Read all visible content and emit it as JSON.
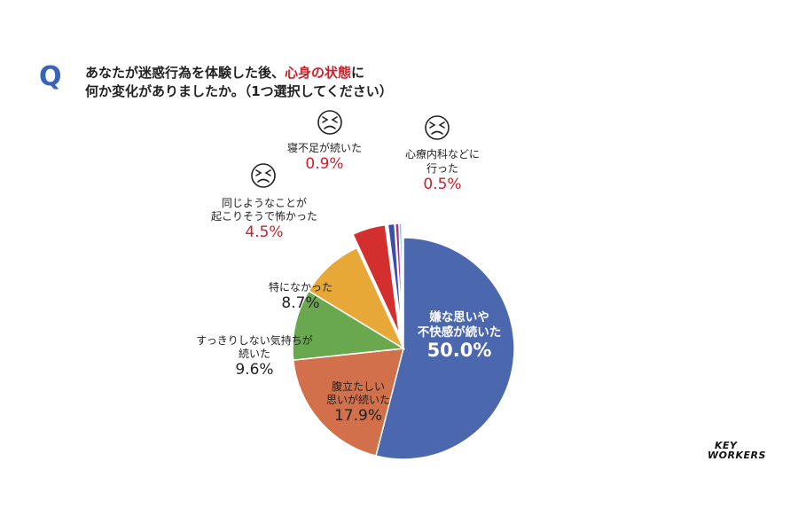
{
  "question": {
    "mark": "Q",
    "line1_pre": "あなたが迷惑行為を体験した後、",
    "line1_highlight": "心身の状態",
    "line1_post": "に",
    "line2": "何か変化がありましたか。（1つ選択してください）"
  },
  "brand": {
    "line1": "KEY",
    "line2": "WORKERS"
  },
  "colors": {
    "highlight": "#d0202a",
    "q_mark": "#3a63b8"
  },
  "chart_data": {
    "type": "pie",
    "start": "12 o'clock, clockwise",
    "exploded_slices": [
      "同じようなことが起こりそうで怖かった",
      "寝不足が続いた",
      "心療内科などに行った",
      "other_small"
    ],
    "slices": [
      {
        "label_lines": [
          "嫌な思いや",
          "不快感が続いた"
        ],
        "value": 50.0,
        "value_label": "50.0%",
        "color": "#4b67ad",
        "label_inside": true
      },
      {
        "label_lines": [
          "腹立たしい",
          "思いが続いた"
        ],
        "value": 17.9,
        "value_label": "17.9%",
        "color": "#d1704a",
        "label_inside": true
      },
      {
        "label_lines": [
          "すっきりしない気持ちが",
          "続いた"
        ],
        "value": 9.6,
        "value_label": "9.6%",
        "color": "#6aa84f",
        "label_inside": false
      },
      {
        "label_lines": [
          "特になかった"
        ],
        "value": 8.7,
        "value_label": "8.7%",
        "color": "#e8a838",
        "label_inside": false
      },
      {
        "label_lines": [
          "同じようなことが",
          "起こりそうで怖かった"
        ],
        "value": 4.5,
        "value_label": "4.5%",
        "color": "#d32f2f",
        "label_inside": false,
        "value_red": true,
        "face": true
      },
      {
        "label_lines": [
          "寝不足が続いた"
        ],
        "value": 0.9,
        "value_label": "0.9%",
        "color": "#3a4eaa",
        "label_inside": false,
        "value_red": true,
        "face": true
      },
      {
        "label_lines": [
          "心療内科などに",
          "行った"
        ],
        "value": 0.5,
        "value_label": "0.5%",
        "color": "#b02a8c",
        "label_inside": false,
        "value_red": true,
        "face": true
      },
      {
        "label_lines": [],
        "value": 0.3,
        "value_label": "",
        "color": "#4ba3c7",
        "label_inside": false
      },
      {
        "label_lines": [],
        "value": 0.2,
        "value_label": "",
        "color": "#c9c9c9",
        "label_inside": false
      }
    ]
  }
}
